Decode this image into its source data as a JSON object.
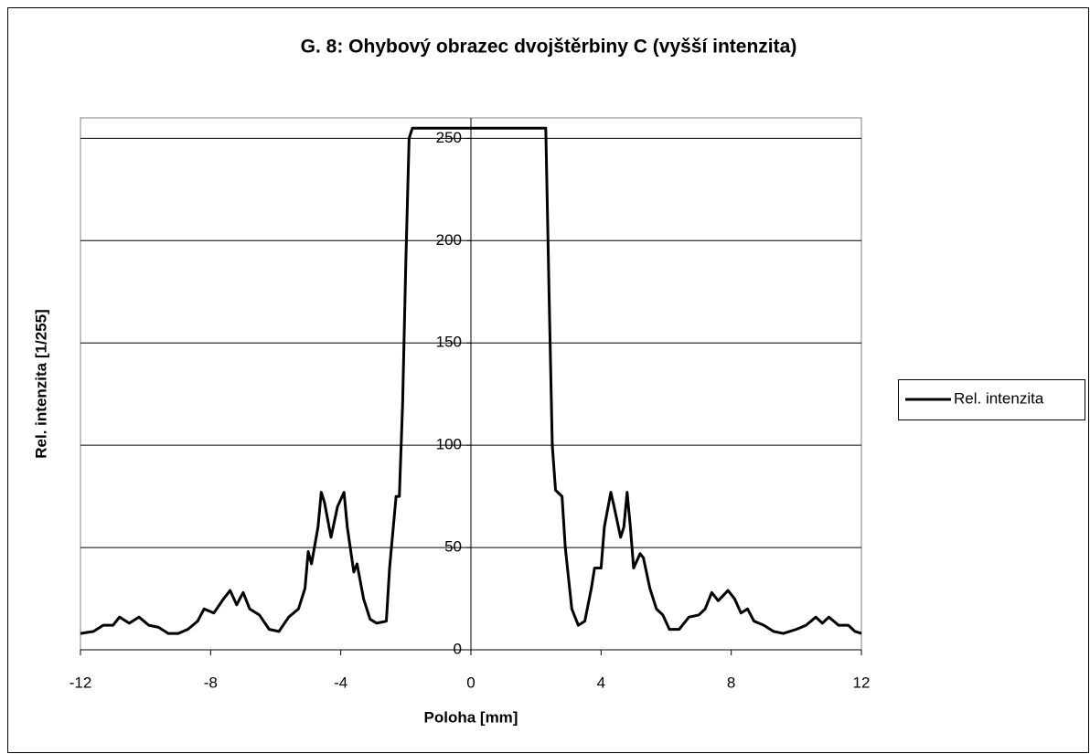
{
  "chart_data": {
    "type": "line",
    "title": "G. 8: Ohybový obrazec dvojštěrbiny C (vyšší intenzita)",
    "x_label": "Poloha [mm]",
    "y_label": "Rel. intenzita [1/255]",
    "x": [
      -12,
      -11.6,
      -11.3,
      -11,
      -10.8,
      -10.5,
      -10.2,
      -9.9,
      -9.6,
      -9.3,
      -9,
      -8.7,
      -8.4,
      -8.2,
      -7.9,
      -7.6,
      -7.4,
      -7.2,
      -7,
      -6.8,
      -6.5,
      -6.2,
      -5.9,
      -5.6,
      -5.3,
      -5.1,
      -5,
      -4.9,
      -4.7,
      -4.6,
      -4.5,
      -4.3,
      -4.1,
      -3.9,
      -3.8,
      -3.6,
      -3.5,
      -3.3,
      -3.1,
      -2.9,
      -2.6,
      -2.5,
      -2.3,
      -2.2,
      -2.1,
      -2,
      -1.9,
      -1.8,
      2.3,
      2.4,
      2.5,
      2.6,
      2.8,
      2.9,
      3.1,
      3.3,
      3.5,
      3.7,
      3.8,
      4,
      4.1,
      4.3,
      4.4,
      4.6,
      4.7,
      4.8,
      4.9,
      5,
      5.2,
      5.3,
      5.5,
      5.7,
      5.9,
      6.1,
      6.4,
      6.7,
      7,
      7.2,
      7.4,
      7.6,
      7.9,
      8.1,
      8.3,
      8.5,
      8.7,
      9,
      9.3,
      9.6,
      10,
      10.3,
      10.6,
      10.8,
      11,
      11.3,
      11.6,
      11.8,
      12
    ],
    "series": [
      {
        "name": "Rel. intenzita",
        "color": "#000000",
        "values": [
          8,
          9,
          12,
          12,
          16,
          13,
          16,
          12,
          11,
          8,
          8,
          10,
          14,
          20,
          18,
          25,
          29,
          22,
          28,
          20,
          17,
          10,
          9,
          16,
          20,
          30,
          48,
          42,
          60,
          77,
          72,
          55,
          70,
          77,
          60,
          38,
          42,
          25,
          15,
          13,
          14,
          40,
          75,
          75,
          120,
          190,
          250,
          255,
          255,
          175,
          100,
          78,
          75,
          50,
          20,
          12,
          14,
          30,
          40,
          40,
          60,
          77,
          70,
          55,
          60,
          77,
          60,
          40,
          47,
          45,
          30,
          20,
          17,
          10,
          10,
          16,
          17,
          20,
          28,
          24,
          29,
          25,
          18,
          20,
          14,
          12,
          9,
          8,
          10,
          12,
          16,
          13,
          16,
          12,
          12,
          9,
          8
        ]
      }
    ],
    "xlim": [
      -12,
      12
    ],
    "ylim": [
      0,
      260
    ],
    "xticks": [
      -12,
      -8,
      -4,
      0,
      4,
      8,
      12
    ],
    "yticks": [
      0,
      50,
      100,
      150,
      200,
      250
    ],
    "grid": true,
    "legend": "right"
  }
}
